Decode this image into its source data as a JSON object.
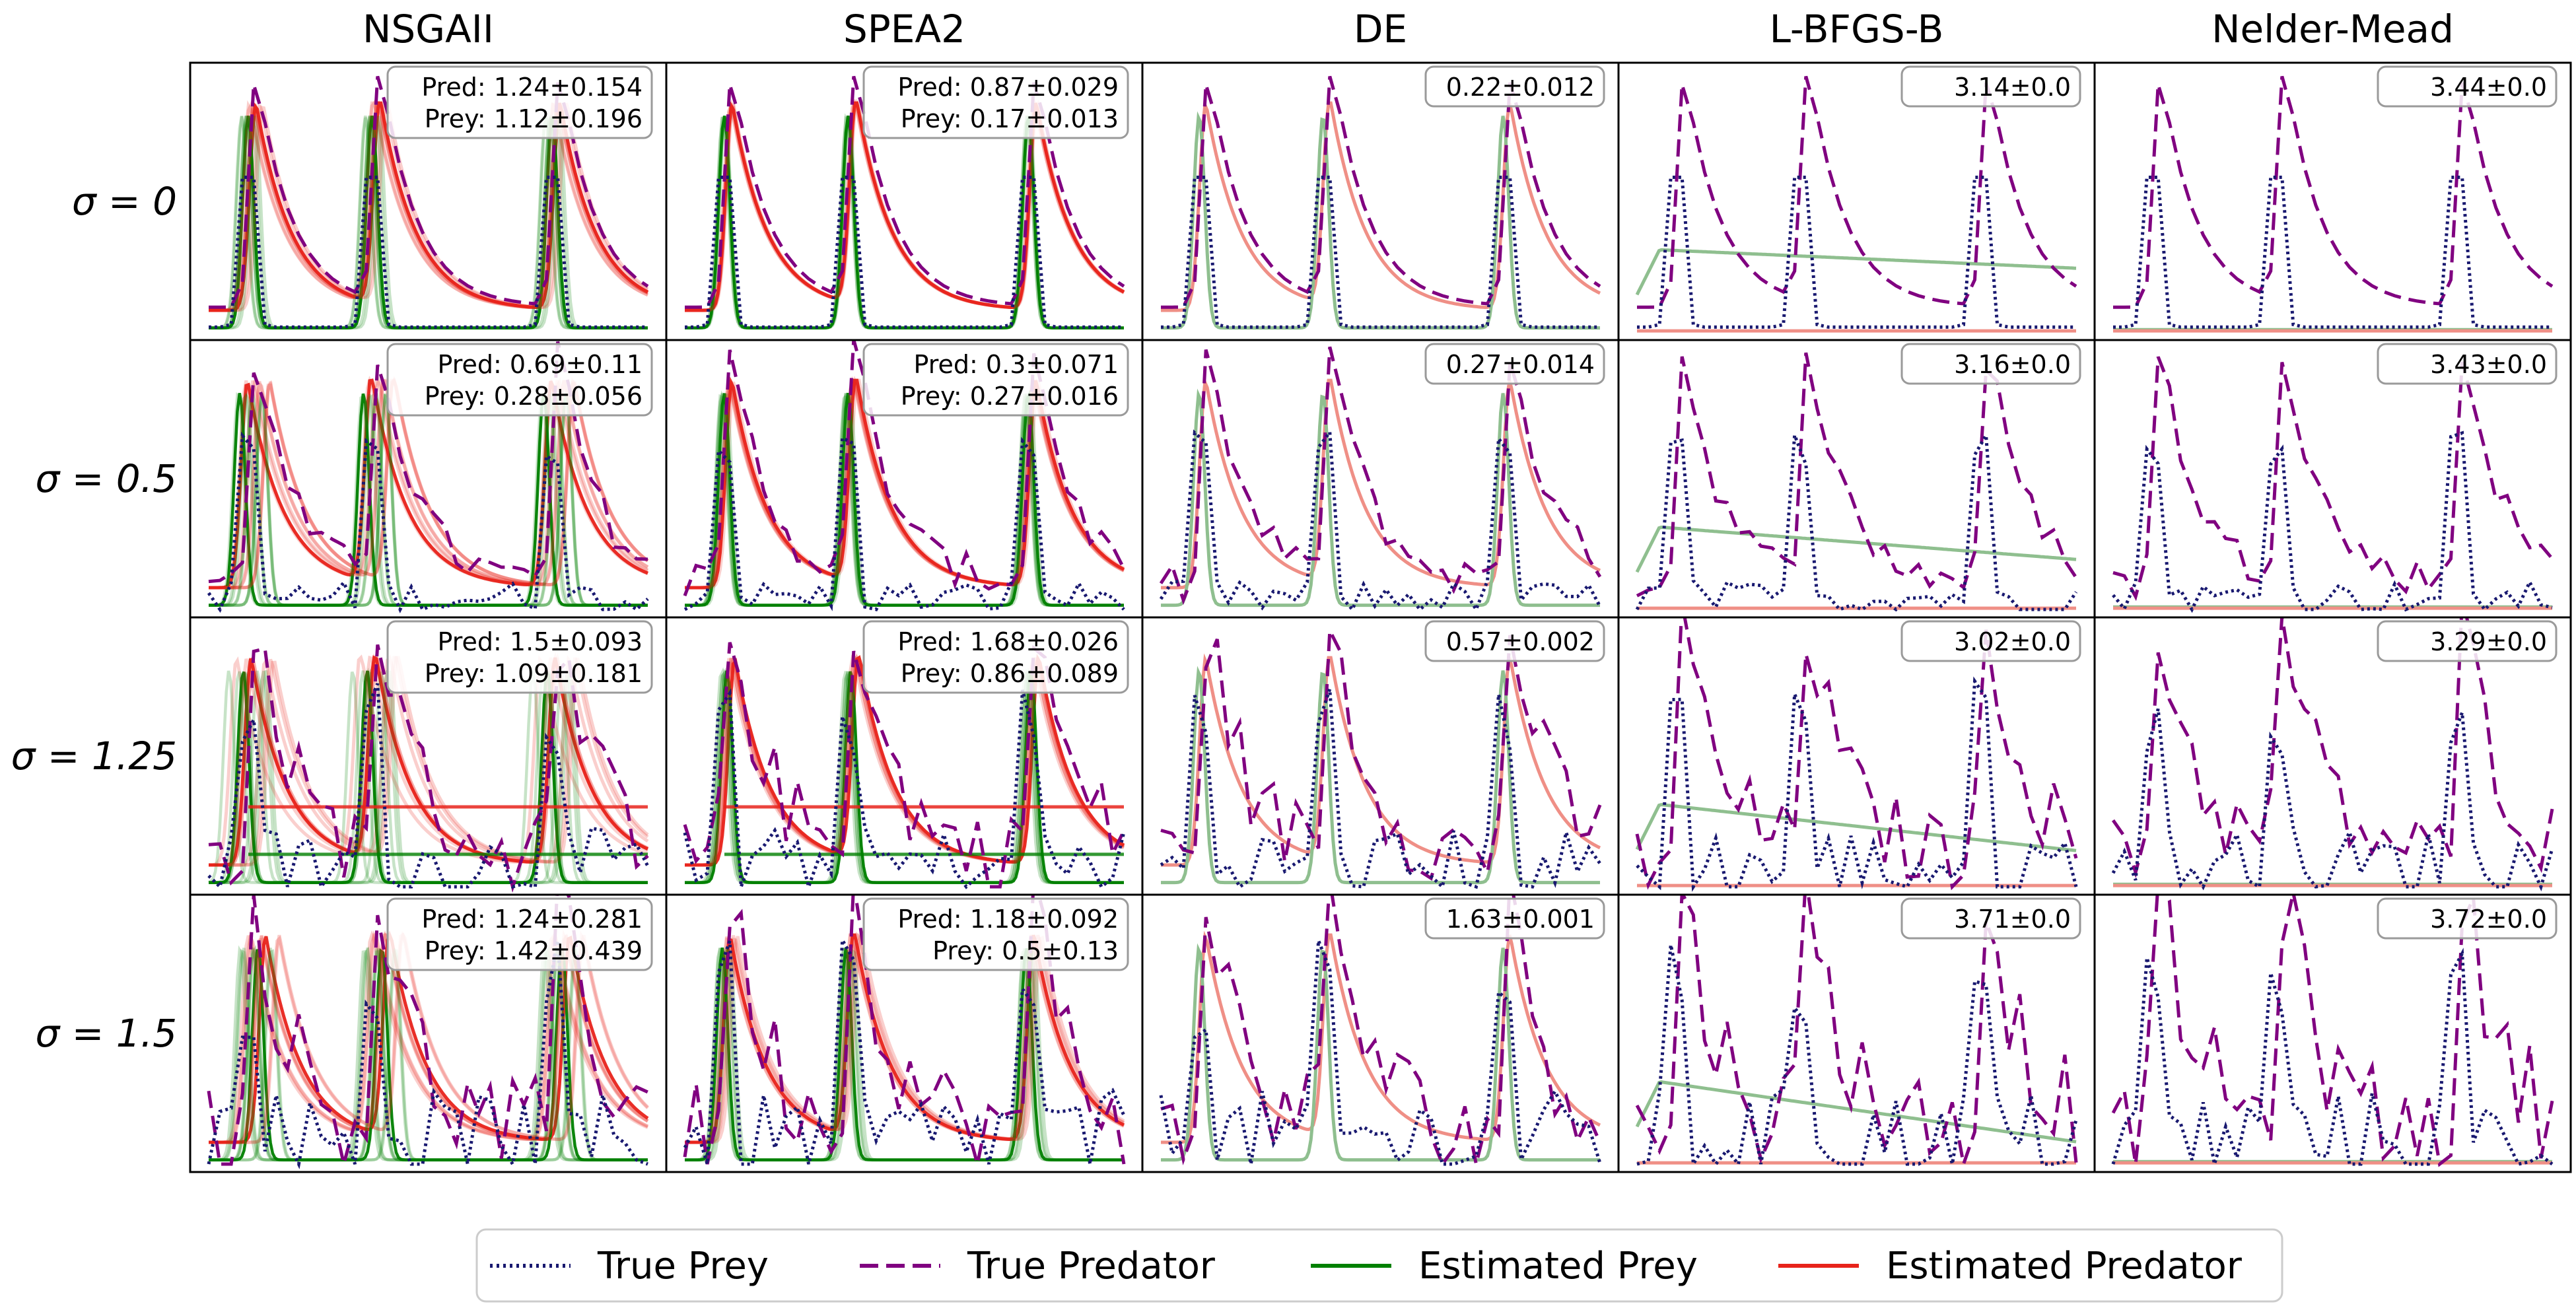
{
  "chart_data": {
    "type": "line",
    "layout": "4x5 grid of small-multiple line plots, no axis ticks",
    "columns": [
      "NSGAII",
      "SPEA2",
      "DE",
      "L-BFGS-B",
      "Nelder-Mead"
    ],
    "row_labels": [
      "σ = 0",
      "σ = 0.5",
      "σ = 1.25",
      "σ = 1.5"
    ],
    "colors": {
      "true_prey": "#191970",
      "true_predator": "#800080",
      "estimated_prey": "#008000",
      "estimated_predator": "#e8231b",
      "fit_predator_light": "#ef8f86",
      "fit_prey_light": "#8fbf8f"
    },
    "legend": {
      "placement": "bottom-center",
      "entries": [
        {
          "label": "True Prey",
          "style": "dotted",
          "color": "#191970"
        },
        {
          "label": "True Predator",
          "style": "dashed",
          "color": "#800080"
        },
        {
          "label": "Estimated Prey",
          "style": "solid",
          "color": "#008000"
        },
        {
          "label": "Estimated Predator",
          "style": "solid",
          "color": "#e8231b"
        }
      ]
    },
    "panels": [
      [
        {
          "lines": [
            "Pred: 1.24±0.154",
            "Prey: 1.12±0.196"
          ]
        },
        {
          "lines": [
            "Pred: 0.87±0.029",
            "Prey: 0.17±0.013"
          ]
        },
        {
          "lines": [
            "0.22±0.012"
          ]
        },
        {
          "lines": [
            "3.14±0.0"
          ]
        },
        {
          "lines": [
            "3.44±0.0"
          ]
        }
      ],
      [
        {
          "lines": [
            "Pred: 0.69±0.11",
            "Prey: 0.28±0.056"
          ]
        },
        {
          "lines": [
            "Pred: 0.3±0.071",
            "Prey: 0.27±0.016"
          ]
        },
        {
          "lines": [
            "0.27±0.014"
          ]
        },
        {
          "lines": [
            "3.16±0.0"
          ]
        },
        {
          "lines": [
            "3.43±0.0"
          ]
        }
      ],
      [
        {
          "lines": [
            "Pred: 1.5±0.093",
            "Prey: 1.09±0.181"
          ]
        },
        {
          "lines": [
            "Pred: 1.68±0.026",
            "Prey: 0.86±0.089"
          ]
        },
        {
          "lines": [
            "0.57±0.002"
          ]
        },
        {
          "lines": [
            "3.02±0.0"
          ]
        },
        {
          "lines": [
            "3.29±0.0"
          ]
        }
      ],
      [
        {
          "lines": [
            "Pred: 1.24±0.281",
            "Prey: 1.42±0.439"
          ]
        },
        {
          "lines": [
            "Pred: 1.18±0.092",
            "Prey: 0.5±0.13"
          ]
        },
        {
          "lines": [
            "1.63±0.001"
          ]
        },
        {
          "lines": [
            "3.71±0.0"
          ]
        },
        {
          "lines": [
            "3.72±0.0"
          ]
        }
      ]
    ],
    "series": [
      {
        "name": "True Prey",
        "noise_per_row": [
          0,
          0.5,
          1.25,
          1.5
        ]
      },
      {
        "name": "True Predator",
        "noise_per_row": [
          0,
          0.5,
          1.25,
          1.5
        ]
      },
      {
        "name": "Estimated Prey",
        "fit_per_column": [
          "spread ensemble",
          "tight ensemble",
          "single fit",
          "flat fit",
          "near-zero fit"
        ]
      },
      {
        "name": "Estimated Predator",
        "fit_per_column": [
          "spread ensemble",
          "tight ensemble",
          "single fit",
          "near-zero fit",
          "near-zero fit"
        ]
      }
    ],
    "grid": false
  }
}
